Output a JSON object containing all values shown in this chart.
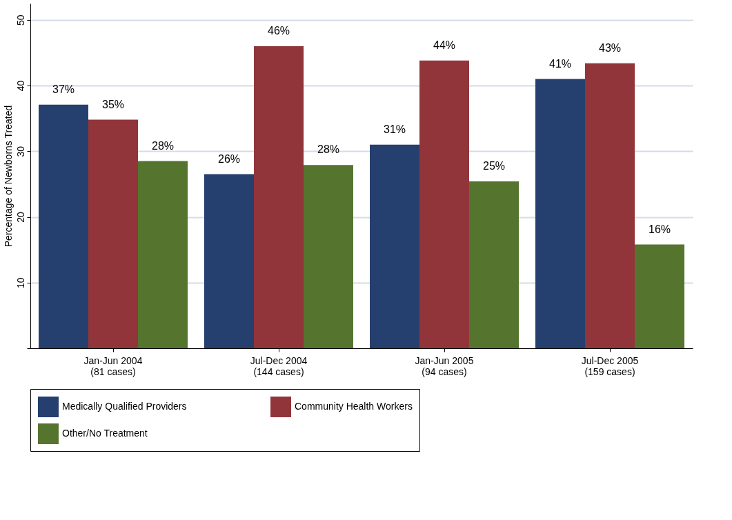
{
  "chart_data": {
    "type": "bar",
    "ylabel": "Percentage of Newborns Treated",
    "categories": [
      "Jan-Jun 2004\n(81 cases)",
      "Jul-Dec 2004\n(144 cases)",
      "Jan-Jun 2005\n(94 cases)",
      "Jul-Dec 2005\n(159 cases)"
    ],
    "series": [
      {
        "name": "Medically Qualified Providers",
        "color": "#253f6e",
        "values": [
          37.1,
          26.5,
          31.0,
          41.0
        ],
        "value_labels": [
          "37%",
          "26%",
          "31%",
          "41%"
        ]
      },
      {
        "name": "Community Health Workers",
        "color": "#92353b",
        "values": [
          34.8,
          46.0,
          43.8,
          43.4
        ],
        "value_labels": [
          "35%",
          "46%",
          "44%",
          "43%"
        ]
      },
      {
        "name": "Other/No Treatment",
        "color": "#55752f",
        "values": [
          28.5,
          27.9,
          25.4,
          15.8
        ],
        "value_labels": [
          "28%",
          "28%",
          "25%",
          "16%"
        ]
      }
    ],
    "ylim": [
      0,
      52.5
    ],
    "yticks": [
      {
        "value": 0,
        "label": null
      },
      10,
      20,
      30,
      40,
      50
    ],
    "grid": "y",
    "legend": "bottom"
  }
}
